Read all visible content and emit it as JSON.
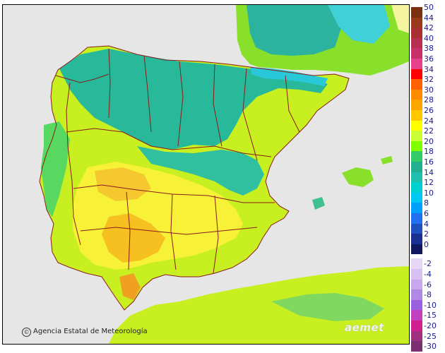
{
  "map": {
    "credit_text": "Agencia Estatal de Meteorología",
    "credit_icon": "copyright-icon",
    "logo_text": "aemet",
    "colors": {
      "sea": "#e6e6e6",
      "border": "#8b1a1a"
    }
  },
  "legend": {
    "positive": [
      {
        "label": "50",
        "color": "#7a3010"
      },
      {
        "label": "44",
        "color": "#9a3a1a"
      },
      {
        "label": "42",
        "color": "#a83030"
      },
      {
        "label": "40",
        "color": "#b83050"
      },
      {
        "label": "38",
        "color": "#c8306a"
      },
      {
        "label": "36",
        "color": "#e8408a"
      },
      {
        "label": "34",
        "color": "#ff0000"
      },
      {
        "label": "32",
        "color": "#ff6000"
      },
      {
        "label": "30",
        "color": "#ff8c00"
      },
      {
        "label": "28",
        "color": "#ffa500"
      },
      {
        "label": "26",
        "color": "#ffc800"
      },
      {
        "label": "24",
        "color": "#ffff00"
      },
      {
        "label": "22",
        "color": "#ccff33"
      },
      {
        "label": "20",
        "color": "#80ff00"
      },
      {
        "label": "18",
        "color": "#33cc66"
      },
      {
        "label": "16",
        "color": "#20b090"
      },
      {
        "label": "14",
        "color": "#20c0b0"
      },
      {
        "label": "12",
        "color": "#00d0d0"
      },
      {
        "label": "10",
        "color": "#00c8f0"
      },
      {
        "label": "8",
        "color": "#00a0ff"
      },
      {
        "label": "6",
        "color": "#2070f0"
      },
      {
        "label": "4",
        "color": "#2050c0"
      },
      {
        "label": "2",
        "color": "#1a3090"
      },
      {
        "label": "0",
        "color": "#101860"
      }
    ],
    "negative": [
      {
        "label": "-2",
        "color": "#e6d8f5"
      },
      {
        "label": "-4",
        "color": "#d8c0f0"
      },
      {
        "label": "-6",
        "color": "#c8a8ec"
      },
      {
        "label": "-8",
        "color": "#b088e6"
      },
      {
        "label": "-10",
        "color": "#9a60e0"
      },
      {
        "label": "-15",
        "color": "#c040c0"
      },
      {
        "label": "-20",
        "color": "#d02090"
      },
      {
        "label": "-25",
        "color": "#a03080"
      },
      {
        "label": "-30",
        "color": "#7a3070"
      }
    ]
  }
}
